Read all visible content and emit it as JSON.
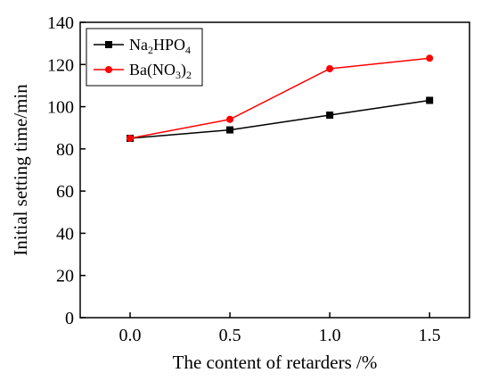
{
  "chart_data": {
    "type": "line",
    "xlabel": "The content of retarders /%",
    "ylabel": "Initial setting time/min",
    "xlim": [
      -0.25,
      1.7
    ],
    "ylim": [
      0,
      140
    ],
    "x_ticks": [
      0.0,
      0.5,
      1.0,
      1.5
    ],
    "x_tick_labels": [
      "0.0",
      "0.5",
      "1.0",
      "1.5"
    ],
    "y_ticks": [
      0,
      20,
      40,
      60,
      80,
      100,
      120,
      140
    ],
    "y_tick_labels": [
      "0",
      "20",
      "40",
      "60",
      "80",
      "100",
      "120",
      "140"
    ],
    "grid": false,
    "legend_position": "top-left",
    "series": [
      {
        "name": "Na2HPO4",
        "name_parts": [
          {
            "text": "Na",
            "sub": false
          },
          {
            "text": "2",
            "sub": true
          },
          {
            "text": "HPO",
            "sub": false
          },
          {
            "text": "4",
            "sub": true
          }
        ],
        "color": "#000000",
        "marker": "square",
        "x": [
          0.0,
          0.5,
          1.0,
          1.5
        ],
        "values": [
          85,
          89,
          96,
          103
        ]
      },
      {
        "name": "Ba(NO3)2",
        "name_parts": [
          {
            "text": "Ba(NO",
            "sub": false
          },
          {
            "text": "3",
            "sub": true
          },
          {
            "text": ")",
            "sub": false
          },
          {
            "text": "2",
            "sub": true
          }
        ],
        "color": "#ff0000",
        "marker": "circle",
        "x": [
          0.0,
          0.5,
          1.0,
          1.5
        ],
        "values": [
          85,
          94,
          118,
          123
        ]
      }
    ]
  }
}
